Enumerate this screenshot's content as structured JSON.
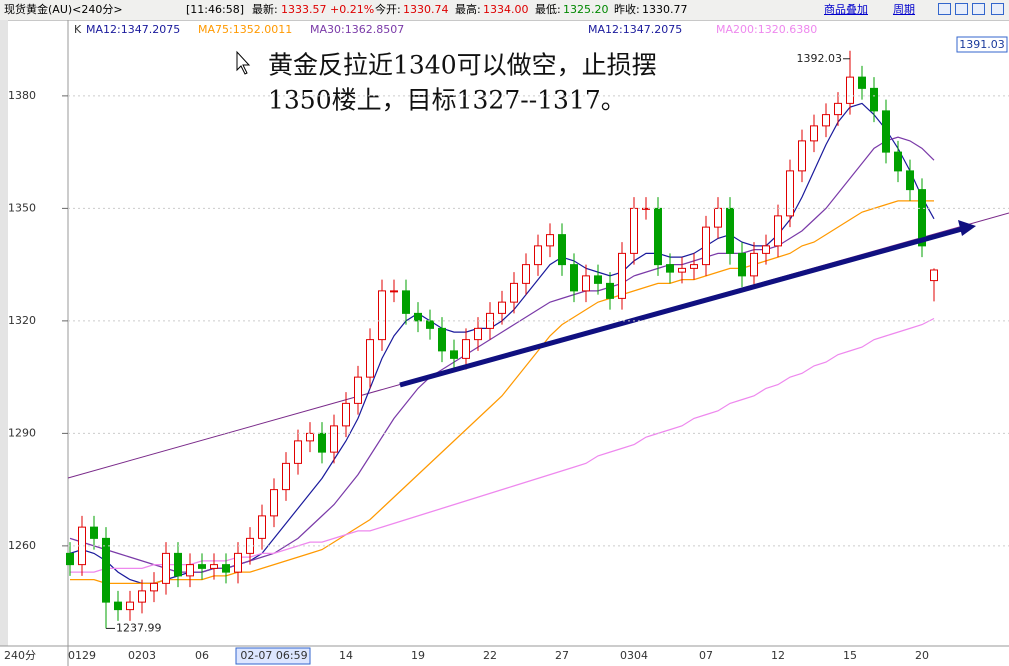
{
  "header": {
    "symbol": "现货黄金(AU)<240分>",
    "time": "[11:46:58]",
    "items": [
      {
        "label": "最新:",
        "value": "1333.57",
        "change": "+0.21%"
      },
      {
        "label": "今开:",
        "value": "1330.74"
      },
      {
        "label": "最高:",
        "value": "1334.00"
      },
      {
        "label": "最低:",
        "value": "1325.20"
      },
      {
        "label": "昨收:",
        "value": "1330.77"
      }
    ],
    "buttons": [
      "商品叠加",
      "周期"
    ]
  },
  "chart_data": {
    "type": "candlestick",
    "indicator_label": "K",
    "extra_legend": "MA12:1347.2075",
    "cursor_price": "1391.03",
    "period_label": "240分",
    "annotation": [
      "黄金反拉近1340可以做空，止损摆",
      "1350楼上，目标1327--1317。"
    ],
    "ylim": [
      1233.3,
      1399.7
    ],
    "yticks": [
      1260,
      1290,
      1320,
      1350,
      1380
    ],
    "grid": true,
    "up_color": "#e00000",
    "down_color": "#00a000",
    "categories": [
      null,
      "0129",
      null,
      null,
      null,
      null,
      "0203",
      null,
      null,
      null,
      null,
      "06",
      null,
      null,
      null,
      null,
      null,
      "02-07 06:59",
      null,
      null,
      null,
      null,
      null,
      "14",
      null,
      null,
      null,
      null,
      null,
      "19",
      null,
      null,
      null,
      null,
      null,
      "22",
      null,
      null,
      null,
      null,
      null,
      "27",
      null,
      null,
      null,
      null,
      null,
      "0304",
      null,
      null,
      null,
      null,
      null,
      "07",
      null,
      null,
      null,
      null,
      null,
      "12",
      null,
      null,
      null,
      null,
      null,
      "15",
      null,
      null,
      null,
      null,
      null,
      "20",
      null
    ],
    "open": [
      1258,
      1255,
      1265,
      1262,
      1245,
      1243,
      1245,
      1248,
      1250,
      1258,
      1252,
      1255,
      1254,
      1255,
      1253,
      1258,
      1262,
      1268,
      1275,
      1282,
      1288,
      1290,
      1285,
      1292,
      1298,
      1305,
      1315,
      1328,
      1328,
      1322,
      1320,
      1318,
      1312,
      1310,
      1315,
      1318,
      1322,
      1325,
      1330,
      1335,
      1340,
      1343,
      1335,
      1328,
      1332,
      1330,
      1326,
      1338,
      1350,
      1350,
      1335,
      1333,
      1334,
      1335,
      1345,
      1350,
      1338,
      1332,
      1338,
      1340,
      1348,
      1360,
      1368,
      1372,
      1375,
      1378,
      1385,
      1382,
      1376,
      1365,
      1360,
      1355,
      1330.74
    ],
    "high": [
      1261,
      1268,
      1268,
      1265,
      1248,
      1248,
      1251,
      1253,
      1261,
      1261,
      1258,
      1258,
      1258,
      1258,
      1261,
      1265,
      1271,
      1278,
      1285,
      1291,
      1293,
      1293,
      1295,
      1301,
      1308,
      1318,
      1331,
      1331,
      1331,
      1325,
      1323,
      1321,
      1315,
      1318,
      1321,
      1325,
      1328,
      1333,
      1338,
      1343,
      1346,
      1346,
      1338,
      1335,
      1335,
      1333,
      1341,
      1353,
      1353,
      1353,
      1338,
      1337,
      1338,
      1348,
      1353,
      1353,
      1341,
      1341,
      1343,
      1351,
      1363,
      1371,
      1375,
      1378,
      1381,
      1392.03,
      1388,
      1385,
      1379,
      1368,
      1363,
      1358,
      1334
    ],
    "low": [
      1252,
      1252,
      1259,
      1237.99,
      1240,
      1240,
      1242,
      1245,
      1247,
      1249,
      1249,
      1251,
      1251,
      1250,
      1250,
      1255,
      1259,
      1265,
      1272,
      1279,
      1285,
      1282,
      1282,
      1289,
      1295,
      1302,
      1312,
      1325,
      1319,
      1317,
      1315,
      1309,
      1307,
      1307,
      1312,
      1315,
      1319,
      1322,
      1327,
      1332,
      1337,
      1332,
      1325,
      1325,
      1327,
      1323,
      1323,
      1335,
      1347,
      1332,
      1330,
      1330,
      1331,
      1332,
      1342,
      1335,
      1329,
      1329,
      1335,
      1337,
      1345,
      1357,
      1365,
      1369,
      1372,
      1375,
      1379,
      1373,
      1362,
      1357,
      1352,
      1337,
      1325.2
    ],
    "close": [
      1255,
      1265,
      1262,
      1245,
      1243,
      1245,
      1248,
      1250,
      1258,
      1252,
      1255,
      1254,
      1255,
      1253,
      1258,
      1262,
      1268,
      1275,
      1282,
      1288,
      1290,
      1285,
      1292,
      1298,
      1305,
      1315,
      1328,
      1328,
      1322,
      1320,
      1318,
      1312,
      1310,
      1315,
      1318,
      1322,
      1325,
      1330,
      1335,
      1340,
      1343,
      1335,
      1328,
      1332,
      1330,
      1326,
      1338,
      1350,
      1350,
      1335,
      1333,
      1334,
      1335,
      1345,
      1350,
      1338,
      1332,
      1338,
      1340,
      1348,
      1360,
      1368,
      1372,
      1375,
      1378,
      1385,
      1382,
      1376,
      1365,
      1360,
      1355,
      1340,
      1333.57
    ],
    "series": [
      {
        "name": "MA12:1347.2075",
        "color": "#1a1a9c",
        "values": [
          1258,
          1259,
          1258,
          1256,
          1253,
          1251,
          1250,
          1250,
          1251,
          1252,
          1253,
          1253,
          1254,
          1254,
          1255,
          1256,
          1258,
          1262,
          1266,
          1270,
          1274,
          1278,
          1283,
          1288,
          1294,
          1302,
          1310,
          1316,
          1320,
          1322,
          1320,
          1318,
          1317,
          1317,
          1318,
          1318,
          1320,
          1323,
          1327,
          1331,
          1335,
          1337,
          1336,
          1334,
          1333,
          1332,
          1333,
          1336,
          1338,
          1338,
          1337,
          1337,
          1338,
          1340,
          1342,
          1343,
          1341,
          1340,
          1340,
          1343,
          1347,
          1353,
          1360,
          1367,
          1373,
          1377,
          1378,
          1375,
          1371,
          1366,
          1360,
          1353,
          1347.2075
        ]
      },
      {
        "name": "MA75:1352.0011",
        "color": "#ff9900",
        "values": [
          1251,
          1251,
          1251,
          1250,
          1250,
          1250,
          1250,
          1250,
          1251,
          1251,
          1251,
          1251,
          1252,
          1252,
          1253,
          1253,
          1254,
          1255,
          1256,
          1257,
          1258,
          1259,
          1261,
          1263,
          1265,
          1267,
          1270,
          1273,
          1276,
          1279,
          1282,
          1285,
          1288,
          1291,
          1294,
          1297,
          1300,
          1304,
          1308,
          1312,
          1316,
          1319,
          1321,
          1323,
          1325,
          1326,
          1327,
          1328,
          1329,
          1330,
          1330,
          1331,
          1331,
          1332,
          1333,
          1334,
          1334,
          1335,
          1336,
          1337,
          1338,
          1340,
          1341,
          1343,
          1345,
          1347,
          1349,
          1350,
          1351,
          1352,
          1352,
          1352,
          1352.0011
        ]
      },
      {
        "name": "MA30:1362.8507",
        "color": "#7a3aa8",
        "values": [
          1262,
          1261,
          1260,
          1259,
          1258,
          1257,
          1256,
          1255,
          1254,
          1253,
          1253,
          1253,
          1254,
          1254,
          1255,
          1256,
          1257,
          1258,
          1260,
          1262,
          1265,
          1268,
          1271,
          1275,
          1279,
          1284,
          1289,
          1294,
          1298,
          1302,
          1305,
          1307,
          1309,
          1311,
          1313,
          1315,
          1317,
          1319,
          1321,
          1323,
          1325,
          1326,
          1327,
          1328,
          1328,
          1329,
          1330,
          1332,
          1333,
          1334,
          1335,
          1335,
          1336,
          1337,
          1338,
          1338,
          1338,
          1339,
          1339,
          1340,
          1342,
          1344,
          1347,
          1350,
          1354,
          1358,
          1362,
          1366,
          1368,
          1369,
          1368,
          1366,
          1362.8507
        ]
      },
      {
        "name": "MA200:1320.6380",
        "color": "#ee88ee",
        "values": [
          1253,
          1253,
          1253,
          1254,
          1254,
          1254,
          1254,
          1255,
          1255,
          1255,
          1255,
          1256,
          1256,
          1256,
          1257,
          1257,
          1258,
          1258,
          1259,
          1260,
          1261,
          1261,
          1262,
          1263,
          1264,
          1264,
          1265,
          1266,
          1267,
          1268,
          1269,
          1270,
          1271,
          1272,
          1273,
          1274,
          1275,
          1276,
          1277,
          1278,
          1279,
          1280,
          1281,
          1282,
          1284,
          1285,
          1286,
          1287,
          1289,
          1290,
          1291,
          1292,
          1294,
          1295,
          1296,
          1298,
          1299,
          1300,
          1302,
          1303,
          1305,
          1306,
          1308,
          1309,
          1311,
          1312,
          1313,
          1315,
          1316,
          1317,
          1318,
          1319,
          1320.638
        ]
      }
    ]
  }
}
